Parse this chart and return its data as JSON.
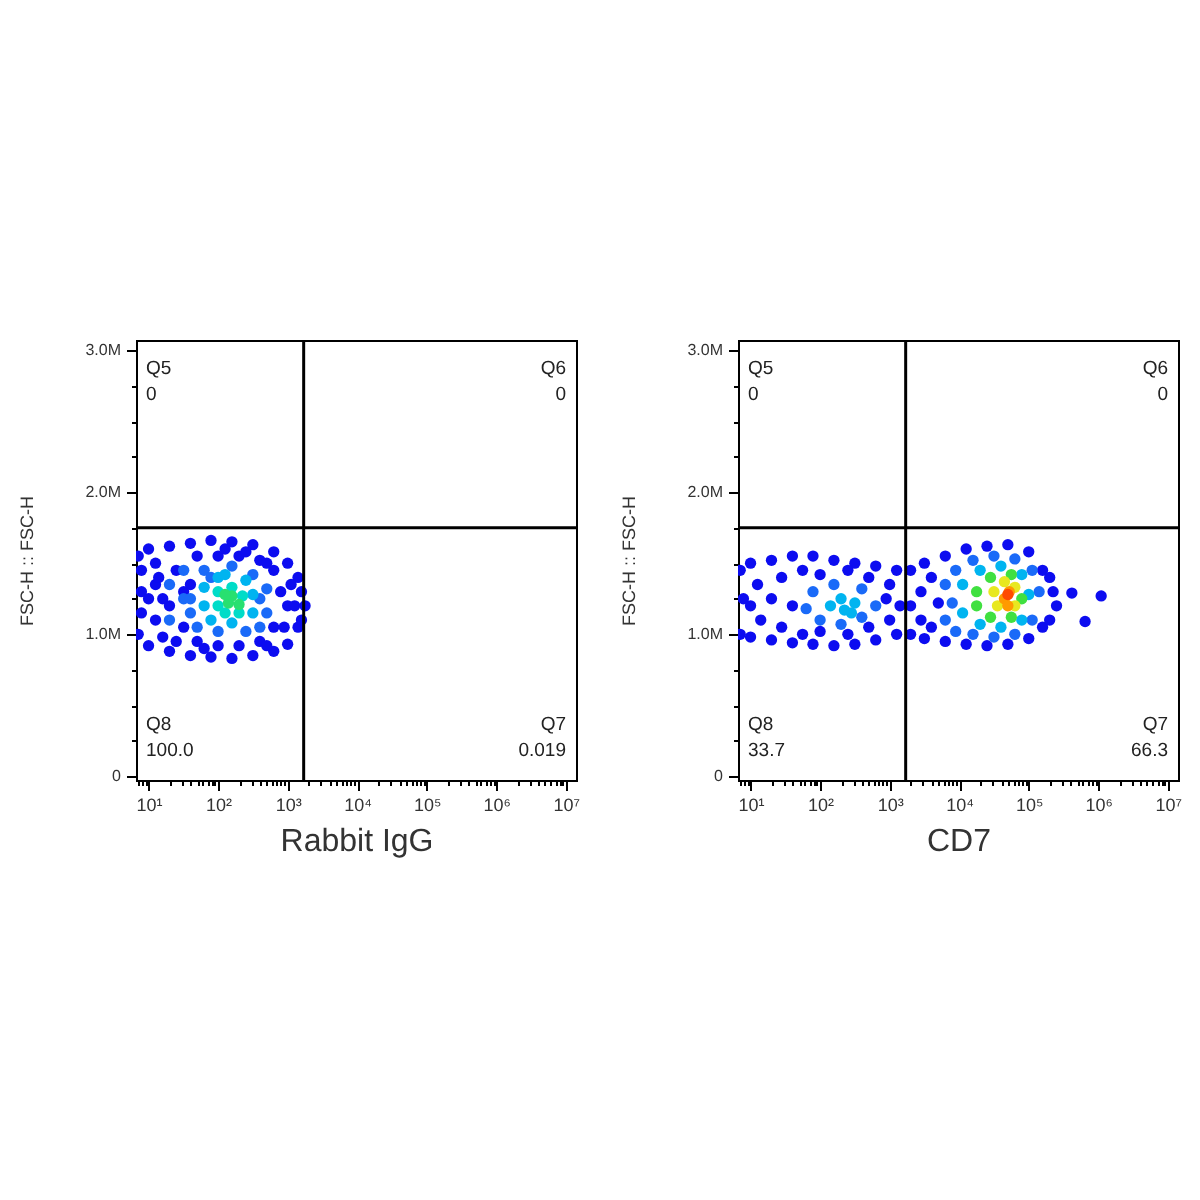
{
  "chart_data": [
    {
      "type": "scatter",
      "xlabel": "Rabbit IgG",
      "ylabel": "FSC-H :: FSC-H",
      "log": "x",
      "marker": "circle",
      "xlim": [
        6.6,
        14000000
      ],
      "ylim": [
        -25000,
        3070000
      ],
      "xticks": [
        {
          "value": 7,
          "label": null
        },
        {
          "value": 8,
          "label": null
        },
        {
          "value": 9,
          "label": null
        },
        {
          "value": 10,
          "label": "10¹"
        },
        {
          "value": 20,
          "label": null
        },
        {
          "value": 30,
          "label": null
        },
        {
          "value": 40,
          "label": null
        },
        {
          "value": 50,
          "label": null
        },
        {
          "value": 60,
          "label": null
        },
        {
          "value": 70,
          "label": null
        },
        {
          "value": 80,
          "label": null
        },
        {
          "value": 90,
          "label": null
        },
        {
          "value": 100,
          "label": "10²"
        },
        {
          "value": 200,
          "label": null
        },
        {
          "value": 300,
          "label": null
        },
        {
          "value": 400,
          "label": null
        },
        {
          "value": 500,
          "label": null
        },
        {
          "value": 600,
          "label": null
        },
        {
          "value": 700,
          "label": null
        },
        {
          "value": 800,
          "label": null
        },
        {
          "value": 900,
          "label": null
        },
        {
          "value": 1000,
          "label": "10³"
        },
        {
          "value": 2000,
          "label": null
        },
        {
          "value": 3000,
          "label": null
        },
        {
          "value": 4000,
          "label": null
        },
        {
          "value": 5000,
          "label": null
        },
        {
          "value": 6000,
          "label": null
        },
        {
          "value": 7000,
          "label": null
        },
        {
          "value": 8000,
          "label": null
        },
        {
          "value": 9000,
          "label": null
        },
        {
          "value": 10000,
          "label": "10⁴"
        },
        {
          "value": 20000,
          "label": null
        },
        {
          "value": 30000,
          "label": null
        },
        {
          "value": 40000,
          "label": null
        },
        {
          "value": 50000,
          "label": null
        },
        {
          "value": 60000,
          "label": null
        },
        {
          "value": 70000,
          "label": null
        },
        {
          "value": 80000,
          "label": null
        },
        {
          "value": 90000,
          "label": null
        },
        {
          "value": 100000,
          "label": "10⁵"
        },
        {
          "value": 200000,
          "label": null
        },
        {
          "value": 300000,
          "label": null
        },
        {
          "value": 400000,
          "label": null
        },
        {
          "value": 500000,
          "label": null
        },
        {
          "value": 600000,
          "label": null
        },
        {
          "value": 700000,
          "label": null
        },
        {
          "value": 800000,
          "label": null
        },
        {
          "value": 900000,
          "label": null
        },
        {
          "value": 1000000,
          "label": "10⁶"
        },
        {
          "value": 2000000,
          "label": null
        },
        {
          "value": 3000000,
          "label": null
        },
        {
          "value": 4000000,
          "label": null
        },
        {
          "value": 5000000,
          "label": null
        },
        {
          "value": 6000000,
          "label": null
        },
        {
          "value": 7000000,
          "label": null
        },
        {
          "value": 8000000,
          "label": null
        },
        {
          "value": 9000000,
          "label": null
        },
        {
          "value": 10000000,
          "label": "10⁷"
        }
      ],
      "yticks": [
        0,
        {
          "value": 250000,
          "label": null
        },
        {
          "value": 500000,
          "label": null
        },
        {
          "value": 750000,
          "label": null
        },
        {
          "value": 1000000,
          "label": "1.0M"
        },
        {
          "value": 1250000,
          "label": null
        },
        {
          "value": 1500000,
          "label": null
        },
        {
          "value": 1750000,
          "label": null
        },
        {
          "value": 2000000,
          "label": "2.0M"
        },
        {
          "value": 2250000,
          "label": null
        },
        {
          "value": 2500000,
          "label": null
        },
        {
          "value": 2750000,
          "label": null
        },
        {
          "value": 3000000,
          "label": "3.0M"
        }
      ],
      "ref_lines": [
        {
          "axis": "x",
          "value": 1700,
          "color": "#000000"
        },
        {
          "axis": "y",
          "value": 1750000,
          "color": "#000000"
        }
      ],
      "annotations": [
        "Q5",
        "0",
        "Q6",
        "0",
        "Q8",
        "100.0",
        "Q7",
        "0.019"
      ],
      "series": [
        {
          "color": "#0c0cf0",
          "x": [
            7.1,
            7.1,
            7.9,
            10,
            10,
            20,
            20,
            40,
            40,
            79,
            79,
            158,
            158,
            316,
            316,
            631,
            631,
            1000,
            1000,
            1410,
            1410,
            1780,
            1580,
            1580,
            7.9,
            7.9,
            12.6,
            12.6,
            12.6,
            16,
            20,
            25,
            32,
            32,
            50,
            50,
            100,
            100,
            200,
            200,
            398,
            398,
            631,
            631,
            1000,
            1120,
            891,
            10,
            14,
            25,
            40,
            63,
            126,
            251,
            501,
            501,
            794,
            1260,
            16
          ],
          "values": [
            1550000,
            1000000,
            1300000,
            1600000,
            920000,
            1620000,
            880000,
            1640000,
            850000,
            1660000,
            840000,
            1650000,
            830000,
            1630000,
            850000,
            1580000,
            880000,
            1500000,
            930000,
            1400000,
            1050000,
            1200000,
            1300000,
            1100000,
            1150000,
            1450000,
            1100000,
            1350000,
            1500000,
            980000,
            1200000,
            1450000,
            1050000,
            1300000,
            950000,
            1550000,
            920000,
            1550000,
            920000,
            1550000,
            950000,
            1520000,
            1050000,
            1450000,
            1200000,
            1350000,
            1050000,
            1250000,
            1400000,
            950000,
            1350000,
            900000,
            1600000,
            1580000,
            1500000,
            920000,
            1300000,
            1200000,
            1250000
          ]
        },
        {
          "color": "#1a6af8",
          "x": [
            20,
            20,
            32,
            40,
            50,
            63,
            100,
            158,
            251,
            316,
            501,
            501,
            32,
            79,
            398,
            398,
            40
          ],
          "values": [
            1100000,
            1350000,
            1450000,
            1150000,
            1050000,
            1450000,
            1020000,
            1480000,
            1020000,
            1420000,
            1150000,
            1320000,
            1250000,
            1400000,
            1050000,
            1250000,
            1250000
          ]
        },
        {
          "color": "#00b4f0",
          "x": [
            63,
            63,
            79,
            100,
            158,
            251,
            316,
            316,
            126
          ],
          "values": [
            1200000,
            1330000,
            1100000,
            1400000,
            1080000,
            1380000,
            1150000,
            1280000,
            1420000
          ]
        },
        {
          "color": "#00dcc8",
          "x": [
            100,
            100,
            158,
            200,
            224,
            126
          ],
          "values": [
            1200000,
            1300000,
            1330000,
            1150000,
            1270000,
            1150000
          ]
        },
        {
          "color": "#28e070",
          "x": [
            141,
            158,
            200,
            126
          ],
          "values": [
            1220000,
            1270000,
            1210000,
            1280000
          ]
        }
      ]
    },
    {
      "type": "scatter",
      "xlabel": "CD7",
      "ylabel": "FSC-H :: FSC-H",
      "log": "x",
      "marker": "circle",
      "xlim": [
        6.6,
        14000000
      ],
      "ylim": [
        -25000,
        3070000
      ],
      "xticks": [
        {
          "value": 7,
          "label": null
        },
        {
          "value": 8,
          "label": null
        },
        {
          "value": 9,
          "label": null
        },
        {
          "value": 10,
          "label": "10¹"
        },
        {
          "value": 20,
          "label": null
        },
        {
          "value": 30,
          "label": null
        },
        {
          "value": 40,
          "label": null
        },
        {
          "value": 50,
          "label": null
        },
        {
          "value": 60,
          "label": null
        },
        {
          "value": 70,
          "label": null
        },
        {
          "value": 80,
          "label": null
        },
        {
          "value": 90,
          "label": null
        },
        {
          "value": 100,
          "label": "10²"
        },
        {
          "value": 200,
          "label": null
        },
        {
          "value": 300,
          "label": null
        },
        {
          "value": 400,
          "label": null
        },
        {
          "value": 500,
          "label": null
        },
        {
          "value": 600,
          "label": null
        },
        {
          "value": 700,
          "label": null
        },
        {
          "value": 800,
          "label": null
        },
        {
          "value": 900,
          "label": null
        },
        {
          "value": 1000,
          "label": "10³"
        },
        {
          "value": 2000,
          "label": null
        },
        {
          "value": 3000,
          "label": null
        },
        {
          "value": 4000,
          "label": null
        },
        {
          "value": 5000,
          "label": null
        },
        {
          "value": 6000,
          "label": null
        },
        {
          "value": 7000,
          "label": null
        },
        {
          "value": 8000,
          "label": null
        },
        {
          "value": 9000,
          "label": null
        },
        {
          "value": 10000,
          "label": "10⁴"
        },
        {
          "value": 20000,
          "label": null
        },
        {
          "value": 30000,
          "label": null
        },
        {
          "value": 40000,
          "label": null
        },
        {
          "value": 50000,
          "label": null
        },
        {
          "value": 60000,
          "label": null
        },
        {
          "value": 70000,
          "label": null
        },
        {
          "value": 80000,
          "label": null
        },
        {
          "value": 90000,
          "label": null
        },
        {
          "value": 100000,
          "label": "10⁵"
        },
        {
          "value": 200000,
          "label": null
        },
        {
          "value": 300000,
          "label": null
        },
        {
          "value": 400000,
          "label": null
        },
        {
          "value": 500000,
          "label": null
        },
        {
          "value": 600000,
          "label": null
        },
        {
          "value": 700000,
          "label": null
        },
        {
          "value": 800000,
          "label": null
        },
        {
          "value": 900000,
          "label": null
        },
        {
          "value": 1000000,
          "label": "10⁶"
        },
        {
          "value": 2000000,
          "label": null
        },
        {
          "value": 3000000,
          "label": null
        },
        {
          "value": 4000000,
          "label": null
        },
        {
          "value": 5000000,
          "label": null
        },
        {
          "value": 6000000,
          "label": null
        },
        {
          "value": 7000000,
          "label": null
        },
        {
          "value": 8000000,
          "label": null
        },
        {
          "value": 9000000,
          "label": null
        },
        {
          "value": 10000000,
          "label": "10⁷"
        }
      ],
      "yticks": [
        0,
        {
          "value": 250000,
          "label": null
        },
        {
          "value": 500000,
          "label": null
        },
        {
          "value": 750000,
          "label": null
        },
        {
          "value": 1000000,
          "label": "1.0M"
        },
        {
          "value": 1250000,
          "label": null
        },
        {
          "value": 1500000,
          "label": null
        },
        {
          "value": 1750000,
          "label": null
        },
        {
          "value": 2000000,
          "label": "2.0M"
        },
        {
          "value": 2250000,
          "label": null
        },
        {
          "value": 2500000,
          "label": null
        },
        {
          "value": 2750000,
          "label": null
        },
        {
          "value": 3000000,
          "label": "3.0M"
        }
      ],
      "ref_lines": [
        {
          "axis": "x",
          "value": 1700,
          "color": "#000000"
        },
        {
          "axis": "y",
          "value": 1750000,
          "color": "#000000"
        }
      ],
      "annotations": [
        "Q5",
        "0",
        "Q6",
        "0",
        "Q8",
        "33.7",
        "Q7",
        "66.3"
      ],
      "series": [
        {
          "color": "#0c0cf0",
          "x": [
            7.1,
            7.1,
            7.9,
            10,
            10,
            20,
            20,
            40,
            40,
            79,
            79,
            158,
            158,
            316,
            316,
            631,
            631,
            1260,
            1260,
            10,
            12.6,
            14,
            20,
            28,
            28,
            40,
            56,
            56,
            100,
            100,
            251,
            251,
            501,
            501,
            891,
            1000,
            1000,
            1410,
            2000,
            2000,
            3160,
            3160,
            6310,
            6310,
            12600,
            12600,
            25100,
            25100,
            50100,
            50100,
            100000,
            100000,
            158000,
            158000,
            224000,
            251000,
            200000,
            200000,
            417000,
            646000,
            1100000,
            2000,
            2820,
            2820,
            3980,
            3980,
            5010
          ],
          "values": [
            1450000,
            1000000,
            1250000,
            1500000,
            980000,
            1520000,
            960000,
            1550000,
            940000,
            1550000,
            930000,
            1520000,
            920000,
            1500000,
            930000,
            1480000,
            960000,
            1450000,
            1000000,
            1200000,
            1350000,
            1100000,
            1250000,
            1400000,
            1050000,
            1200000,
            1450000,
            1000000,
            1420000,
            1020000,
            1450000,
            1000000,
            1400000,
            1050000,
            1250000,
            1350000,
            1100000,
            1200000,
            1450000,
            1000000,
            1500000,
            970000,
            1550000,
            950000,
            1600000,
            930000,
            1620000,
            920000,
            1630000,
            930000,
            1580000,
            970000,
            1450000,
            1050000,
            1300000,
            1200000,
            1400000,
            1100000,
            1290000,
            1090000,
            1270000,
            1200000,
            1300000,
            1100000,
            1400000,
            1050000,
            1220000
          ]
        },
        {
          "color": "#1a6af8",
          "x": [
            63,
            79,
            100,
            158,
            200,
            398,
            398,
            631,
            6310,
            6310,
            8910,
            8910,
            15800,
            15800,
            31600,
            31600,
            63100,
            63100,
            112000,
            112000,
            141000,
            7940
          ],
          "values": [
            1180000,
            1300000,
            1100000,
            1350000,
            1070000,
            1320000,
            1120000,
            1200000,
            1350000,
            1100000,
            1450000,
            1020000,
            1520000,
            1000000,
            1550000,
            980000,
            1530000,
            1000000,
            1450000,
            1100000,
            1300000,
            1220000
          ]
        },
        {
          "color": "#00b4f0",
          "x": [
            141,
            200,
            282,
            316,
            224,
            11200,
            11200,
            20000,
            20000,
            39800,
            39800,
            79400,
            79400,
            100000
          ],
          "values": [
            1200000,
            1250000,
            1150000,
            1220000,
            1170000,
            1350000,
            1150000,
            1450000,
            1070000,
            1480000,
            1050000,
            1420000,
            1100000,
            1280000
          ]
        },
        {
          "color": "#40e040",
          "x": [
            17800,
            17800,
            28200,
            28200,
            56200,
            56200,
            79400
          ],
          "values": [
            1300000,
            1200000,
            1400000,
            1120000,
            1420000,
            1120000,
            1250000
          ]
        },
        {
          "color": "#e8e820",
          "x": [
            31600,
            35500,
            44700,
            63100,
            63100
          ],
          "values": [
            1300000,
            1200000,
            1370000,
            1200000,
            1330000
          ]
        },
        {
          "color": "#ff9a00",
          "x": [
            44700,
            52500,
            50100
          ],
          "values": [
            1250000,
            1300000,
            1200000
          ]
        },
        {
          "color": "#ff4a00",
          "x": [
            50100
          ],
          "values": [
            1280000
          ]
        }
      ]
    }
  ]
}
